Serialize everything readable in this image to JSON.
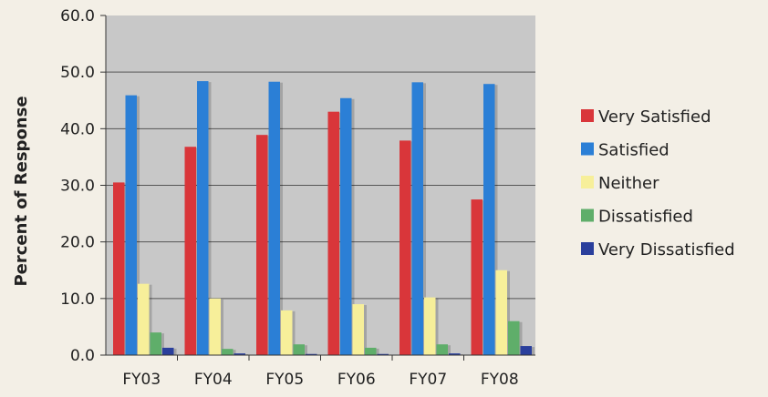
{
  "chart_data": {
    "type": "bar",
    "title": "",
    "xlabel": "",
    "ylabel": "Percent of Response",
    "categories": [
      "FY03",
      "FY04",
      "FY05",
      "FY06",
      "FY07",
      "FY08"
    ],
    "ylim": [
      0,
      60
    ],
    "yticks": [
      "0.0",
      "10.0",
      "20.0",
      "30.0",
      "40.0",
      "50.0",
      "60.0"
    ],
    "grid": true,
    "legend_position": "right",
    "series": [
      {
        "name": "Very Satisfied",
        "color": "#d9363a",
        "values": [
          30.5,
          36.8,
          38.9,
          43.0,
          37.9,
          27.5
        ]
      },
      {
        "name": "Satisfied",
        "color": "#2b7fd6",
        "values": [
          45.9,
          48.4,
          48.3,
          45.4,
          48.2,
          47.9
        ]
      },
      {
        "name": "Neither",
        "color": "#f7ef9a",
        "values": [
          12.6,
          10.0,
          7.9,
          9.0,
          10.2,
          15.0
        ]
      },
      {
        "name": "Dissatisfied",
        "color": "#5fae6a",
        "values": [
          4.0,
          1.1,
          1.9,
          1.3,
          1.9,
          6.0
        ]
      },
      {
        "name": "Very Dissatisfied",
        "color": "#2a3f9c",
        "values": [
          1.3,
          0.3,
          0.2,
          0.2,
          0.3,
          1.6
        ]
      }
    ],
    "plot_background": "#c8c8c8"
  }
}
